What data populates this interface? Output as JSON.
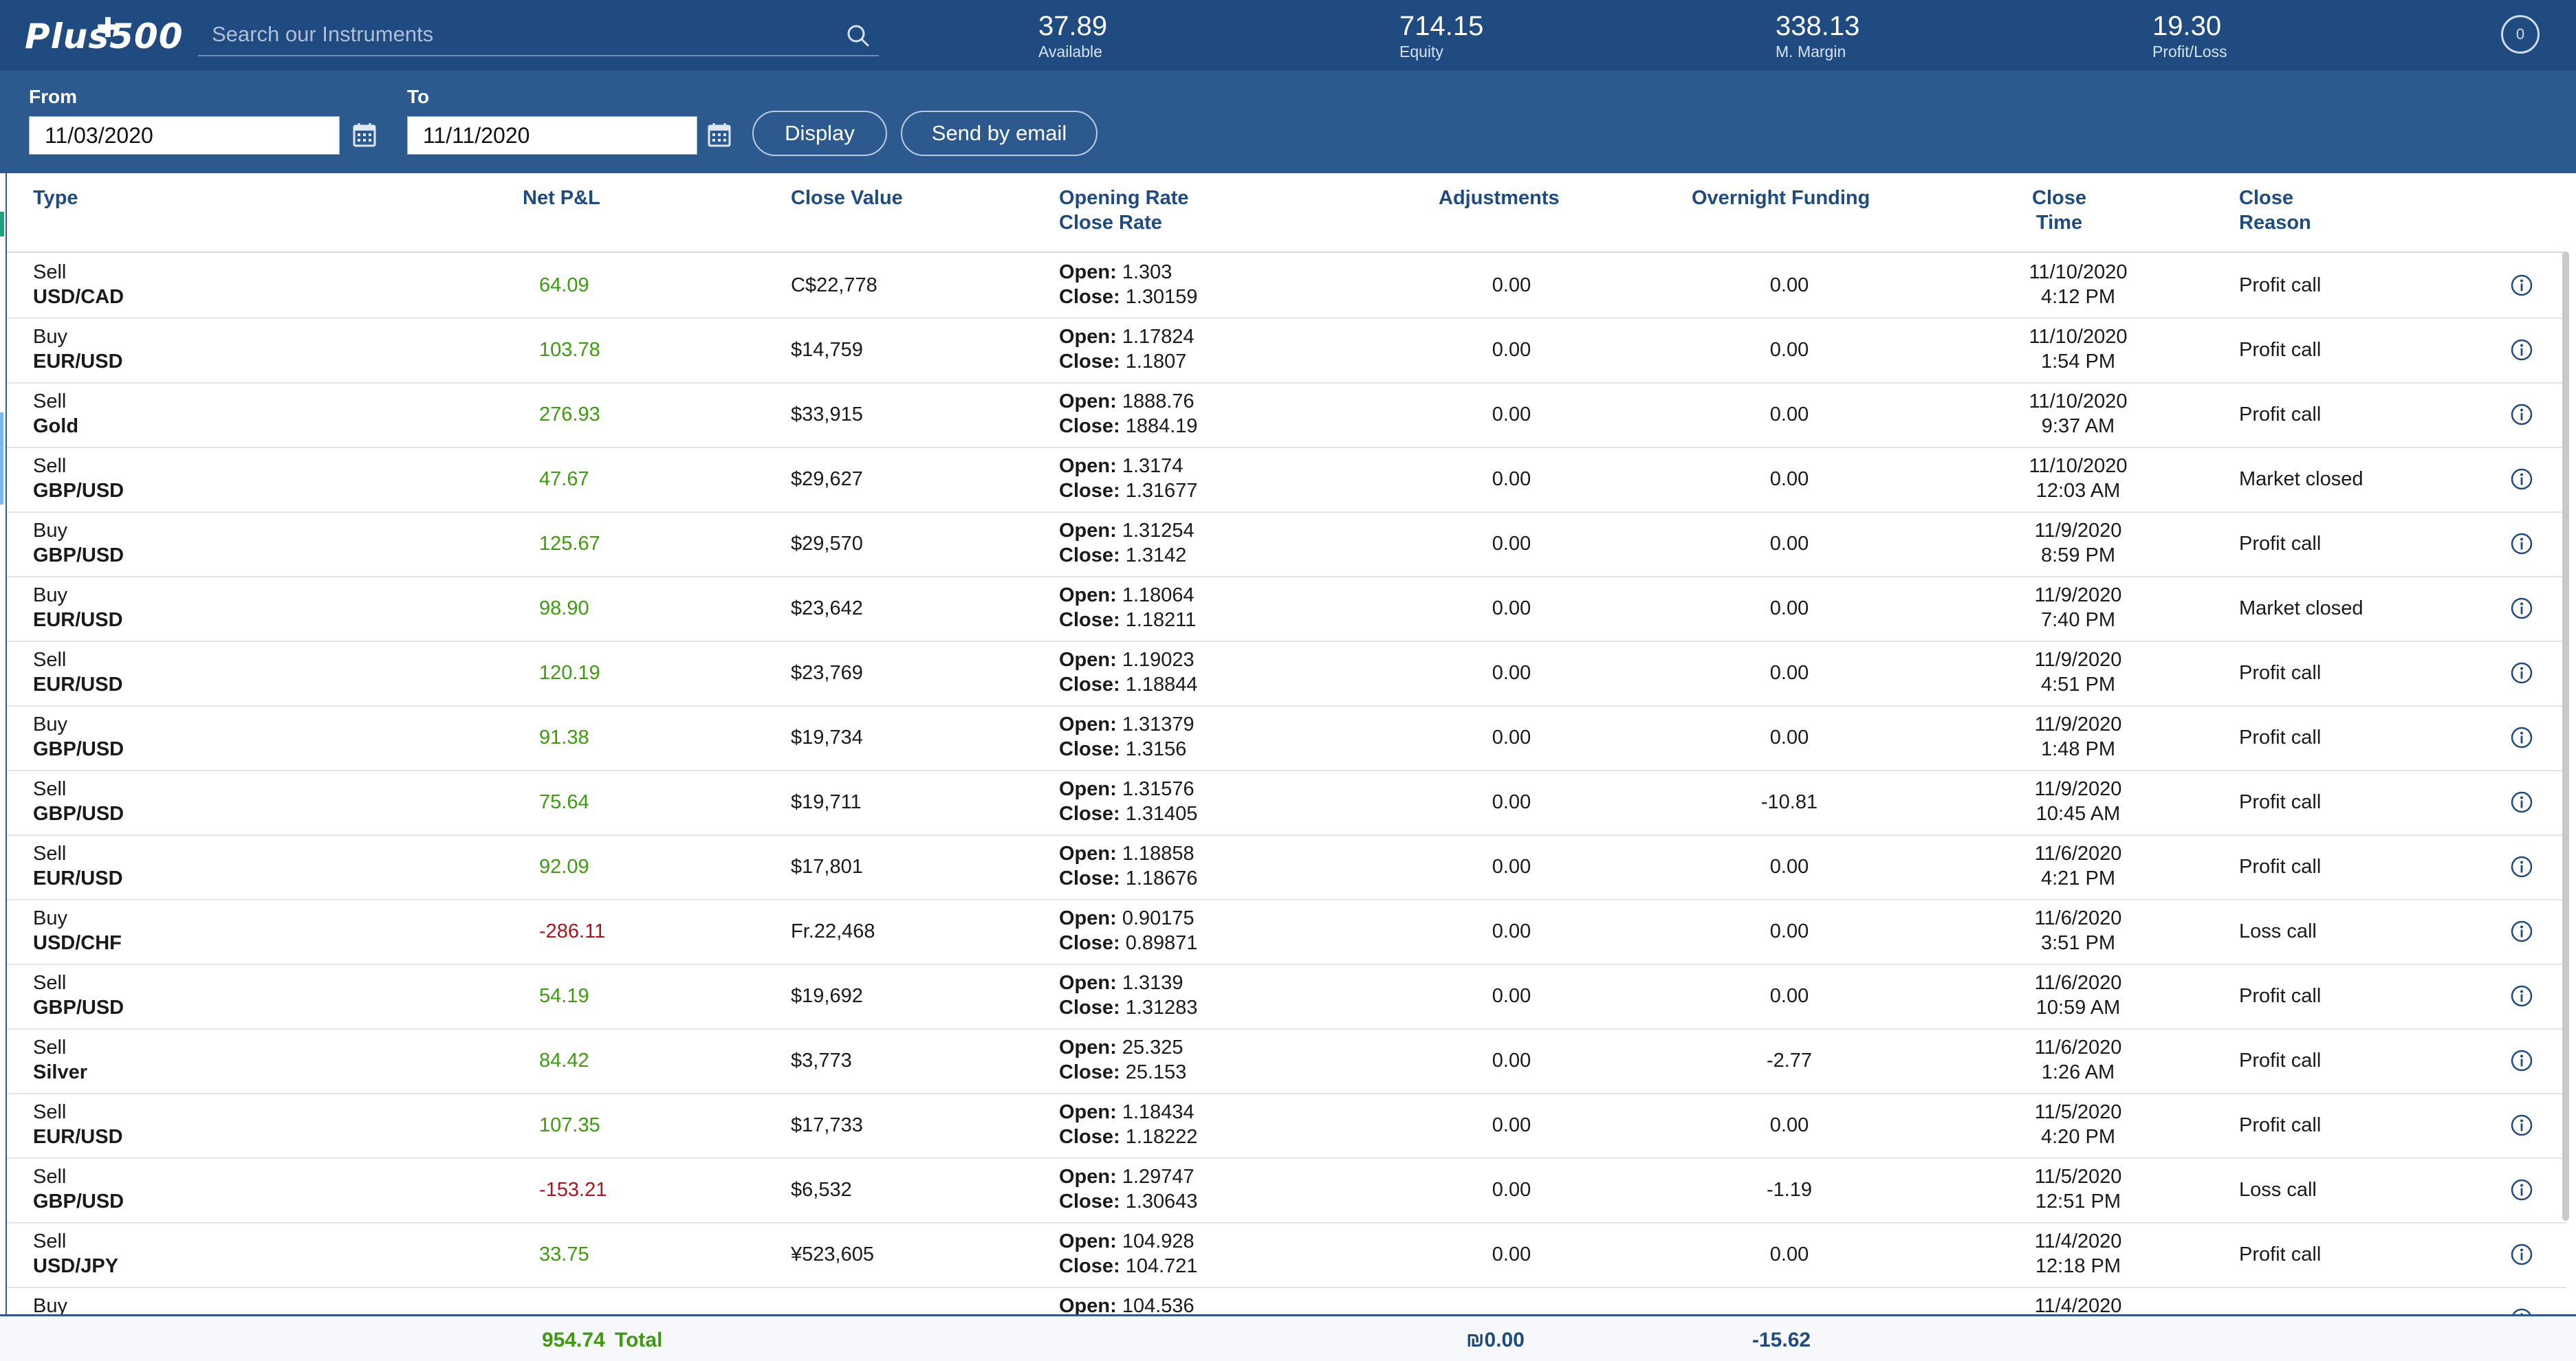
{
  "brand": {
    "logo_text": "Plus500"
  },
  "search": {
    "placeholder": "Search our Instruments"
  },
  "stats": [
    {
      "value": "37.89",
      "label": "Available"
    },
    {
      "value": "714.15",
      "label": "Equity"
    },
    {
      "value": "338.13",
      "label": "M. Margin"
    },
    {
      "value": "19.30",
      "label": "Profit/Loss"
    }
  ],
  "account_badge": "0",
  "filters": {
    "from_label": "From",
    "from_value": "11/03/2020",
    "to_label": "To",
    "to_value": "11/11/2020",
    "display_label": "Display",
    "email_label": "Send by email"
  },
  "columns": {
    "type": "Type",
    "net_pl": "Net P&L",
    "close_value": "Close Value",
    "rate_1": "Opening Rate",
    "rate_2": "Close Rate",
    "adjustments": "Adjustments",
    "overnight": "Overnight Funding",
    "time_1": "Close",
    "time_2": "Time",
    "reason_1": "Close",
    "reason_2": "Reason"
  },
  "open_label": "Open:",
  "close_label": "Close:",
  "rows": [
    {
      "side": "Sell",
      "instrument": "USD/CAD",
      "pnl": "64.09",
      "pnl_sign": "pos",
      "close_value": "C$22,778",
      "open": "1.303",
      "close": "1.30159",
      "adj": "0.00",
      "funding": "0.00",
      "date": "11/10/2020",
      "time": "4:12 PM",
      "reason": "Profit call"
    },
    {
      "side": "Buy",
      "instrument": "EUR/USD",
      "pnl": "103.78",
      "pnl_sign": "pos",
      "close_value": "$14,759",
      "open": "1.17824",
      "close": "1.1807",
      "adj": "0.00",
      "funding": "0.00",
      "date": "11/10/2020",
      "time": "1:54 PM",
      "reason": "Profit call"
    },
    {
      "side": "Sell",
      "instrument": "Gold",
      "pnl": "276.93",
      "pnl_sign": "pos",
      "close_value": "$33,915",
      "open": "1888.76",
      "close": "1884.19",
      "adj": "0.00",
      "funding": "0.00",
      "date": "11/10/2020",
      "time": "9:37 AM",
      "reason": "Profit call"
    },
    {
      "side": "Sell",
      "instrument": "GBP/USD",
      "pnl": "47.67",
      "pnl_sign": "pos",
      "close_value": "$29,627",
      "open": "1.3174",
      "close": "1.31677",
      "adj": "0.00",
      "funding": "0.00",
      "date": "11/10/2020",
      "time": "12:03 AM",
      "reason": "Market closed"
    },
    {
      "side": "Buy",
      "instrument": "GBP/USD",
      "pnl": "125.67",
      "pnl_sign": "pos",
      "close_value": "$29,570",
      "open": "1.31254",
      "close": "1.3142",
      "adj": "0.00",
      "funding": "0.00",
      "date": "11/9/2020",
      "time": "8:59 PM",
      "reason": "Profit call"
    },
    {
      "side": "Buy",
      "instrument": "EUR/USD",
      "pnl": "98.90",
      "pnl_sign": "pos",
      "close_value": "$23,642",
      "open": "1.18064",
      "close": "1.18211",
      "adj": "0.00",
      "funding": "0.00",
      "date": "11/9/2020",
      "time": "7:40 PM",
      "reason": "Market closed"
    },
    {
      "side": "Sell",
      "instrument": "EUR/USD",
      "pnl": "120.19",
      "pnl_sign": "pos",
      "close_value": "$23,769",
      "open": "1.19023",
      "close": "1.18844",
      "adj": "0.00",
      "funding": "0.00",
      "date": "11/9/2020",
      "time": "4:51 PM",
      "reason": "Profit call"
    },
    {
      "side": "Buy",
      "instrument": "GBP/USD",
      "pnl": "91.38",
      "pnl_sign": "pos",
      "close_value": "$19,734",
      "open": "1.31379",
      "close": "1.3156",
      "adj": "0.00",
      "funding": "0.00",
      "date": "11/9/2020",
      "time": "1:48 PM",
      "reason": "Profit call"
    },
    {
      "side": "Sell",
      "instrument": "GBP/USD",
      "pnl": "75.64",
      "pnl_sign": "pos",
      "close_value": "$19,711",
      "open": "1.31576",
      "close": "1.31405",
      "adj": "0.00",
      "funding": "-10.81",
      "date": "11/9/2020",
      "time": "10:45 AM",
      "reason": "Profit call"
    },
    {
      "side": "Sell",
      "instrument": "EUR/USD",
      "pnl": "92.09",
      "pnl_sign": "pos",
      "close_value": "$17,801",
      "open": "1.18858",
      "close": "1.18676",
      "adj": "0.00",
      "funding": "0.00",
      "date": "11/6/2020",
      "time": "4:21 PM",
      "reason": "Profit call"
    },
    {
      "side": "Buy",
      "instrument": "USD/CHF",
      "pnl": "-286.11",
      "pnl_sign": "neg",
      "close_value": "Fr.22,468",
      "open": "0.90175",
      "close": "0.89871",
      "adj": "0.00",
      "funding": "0.00",
      "date": "11/6/2020",
      "time": "3:51 PM",
      "reason": "Loss call"
    },
    {
      "side": "Sell",
      "instrument": "GBP/USD",
      "pnl": "54.19",
      "pnl_sign": "pos",
      "close_value": "$19,692",
      "open": "1.3139",
      "close": "1.31283",
      "adj": "0.00",
      "funding": "0.00",
      "date": "11/6/2020",
      "time": "10:59 AM",
      "reason": "Profit call"
    },
    {
      "side": "Sell",
      "instrument": "Silver",
      "pnl": "84.42",
      "pnl_sign": "pos",
      "close_value": "$3,773",
      "open": "25.325",
      "close": "25.153",
      "adj": "0.00",
      "funding": "-2.77",
      "date": "11/6/2020",
      "time": "1:26 AM",
      "reason": "Profit call"
    },
    {
      "side": "Sell",
      "instrument": "EUR/USD",
      "pnl": "107.35",
      "pnl_sign": "pos",
      "close_value": "$17,733",
      "open": "1.18434",
      "close": "1.18222",
      "adj": "0.00",
      "funding": "0.00",
      "date": "11/5/2020",
      "time": "4:20 PM",
      "reason": "Profit call"
    },
    {
      "side": "Sell",
      "instrument": "GBP/USD",
      "pnl": "-153.21",
      "pnl_sign": "neg",
      "close_value": "$6,532",
      "open": "1.29747",
      "close": "1.30643",
      "adj": "0.00",
      "funding": "-1.19",
      "date": "11/5/2020",
      "time": "12:51 PM",
      "reason": "Loss call"
    },
    {
      "side": "Sell",
      "instrument": "USD/JPY",
      "pnl": "33.75",
      "pnl_sign": "pos",
      "close_value": "¥523,605",
      "open": "104.928",
      "close": "104.721",
      "adj": "0.00",
      "funding": "0.00",
      "date": "11/4/2020",
      "time": "12:18 PM",
      "reason": "Profit call"
    },
    {
      "side": "Buy",
      "instrument": "",
      "pnl": "",
      "pnl_sign": "pos",
      "close_value": "",
      "open": "104.536",
      "close": "",
      "adj": "",
      "funding": "",
      "date": "11/4/2020",
      "time": "",
      "reason": ""
    }
  ],
  "totals": {
    "pnl": "954.74",
    "label": "Total",
    "adjustments": "₪0.00",
    "funding": "-15.62"
  },
  "colors": {
    "header_bg": "#1f4b80",
    "filter_bg": "#2d5a8e",
    "positive": "#3f9a12",
    "negative": "#b0121b",
    "column_header": "#1f4b80"
  }
}
